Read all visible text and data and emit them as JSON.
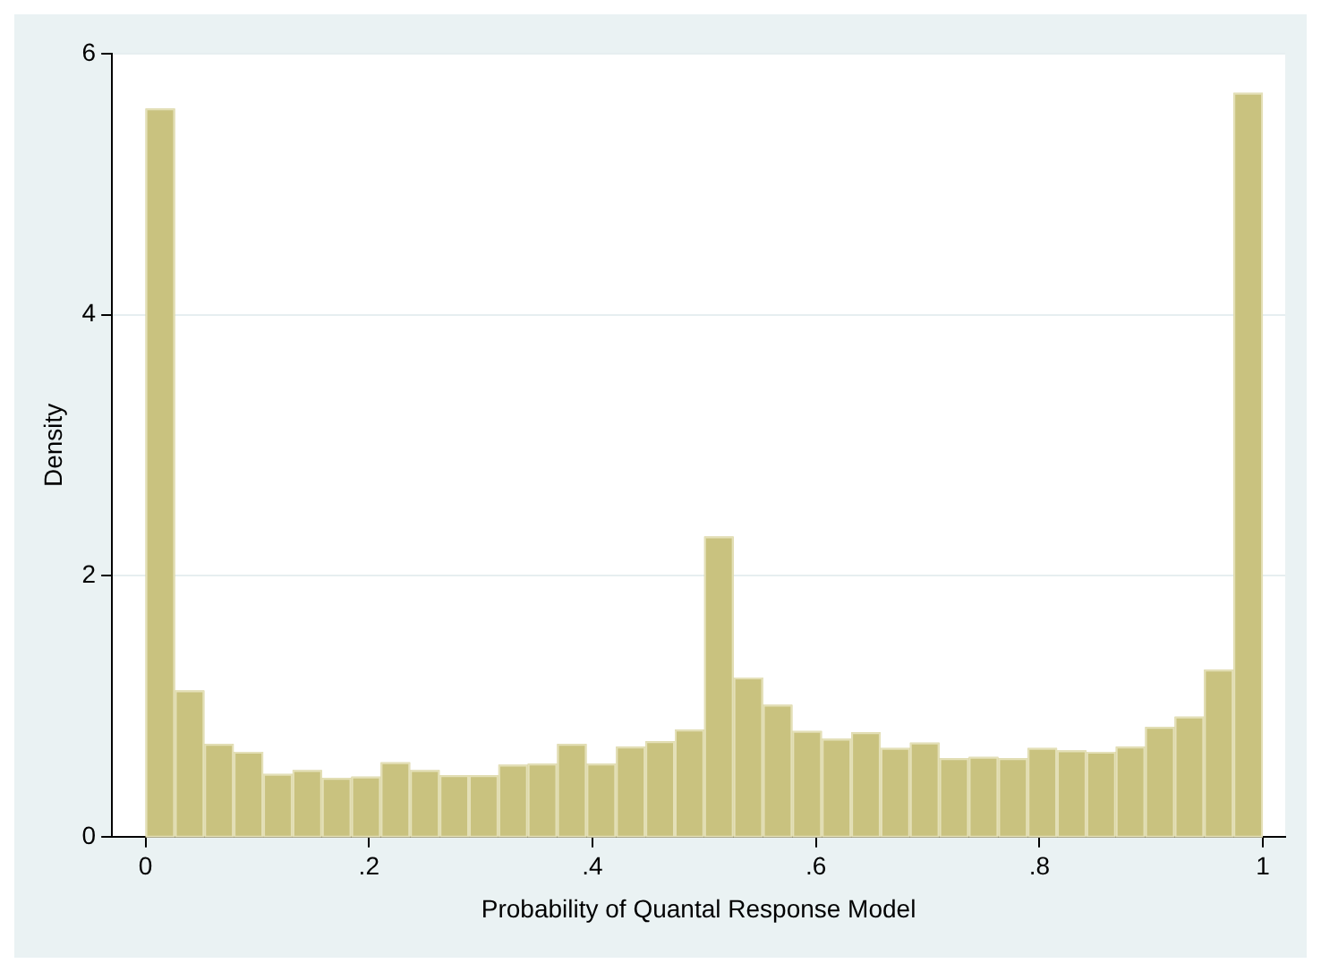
{
  "chart_data": {
    "type": "histogram",
    "xlabel": "Probability of Quantal Response Model",
    "ylabel": "Density",
    "bins": [
      0,
      0.0263,
      0.0526,
      0.0789,
      0.1053,
      0.1316,
      0.1579,
      0.1842,
      0.2105,
      0.2368,
      0.2632,
      0.2895,
      0.3158,
      0.3421,
      0.3684,
      0.3947,
      0.4211,
      0.4474,
      0.4737,
      0.5,
      0.5263,
      0.5526,
      0.5789,
      0.6053,
      0.6316,
      0.6579,
      0.6842,
      0.7105,
      0.7368,
      0.7632,
      0.7895,
      0.8158,
      0.8421,
      0.8684,
      0.8947,
      0.9211,
      0.9474,
      0.9737,
      1
    ],
    "values": [
      5.58,
      1.12,
      0.71,
      0.65,
      0.48,
      0.51,
      0.45,
      0.46,
      0.57,
      0.51,
      0.47,
      0.47,
      0.55,
      0.56,
      0.71,
      0.56,
      0.69,
      0.73,
      0.82,
      2.3,
      1.22,
      1.01,
      0.81,
      0.75,
      0.8,
      0.68,
      0.72,
      0.6,
      0.61,
      0.6,
      0.68,
      0.66,
      0.65,
      0.69,
      0.84,
      0.92,
      1.28,
      5.7
    ],
    "color": "#c9c27f",
    "xlim": [
      -0.03,
      1.02
    ],
    "xticks": [
      0,
      {
        "value": 0.2,
        "label": ".2"
      },
      {
        "value": 0.4,
        "label": ".4"
      },
      {
        "value": 0.6,
        "label": ".6"
      },
      {
        "value": 0.8,
        "label": ".8"
      },
      1
    ],
    "ylim": [
      0,
      6
    ],
    "yticks": [
      0,
      2,
      4,
      6
    ],
    "grid": "y",
    "legend": false
  }
}
